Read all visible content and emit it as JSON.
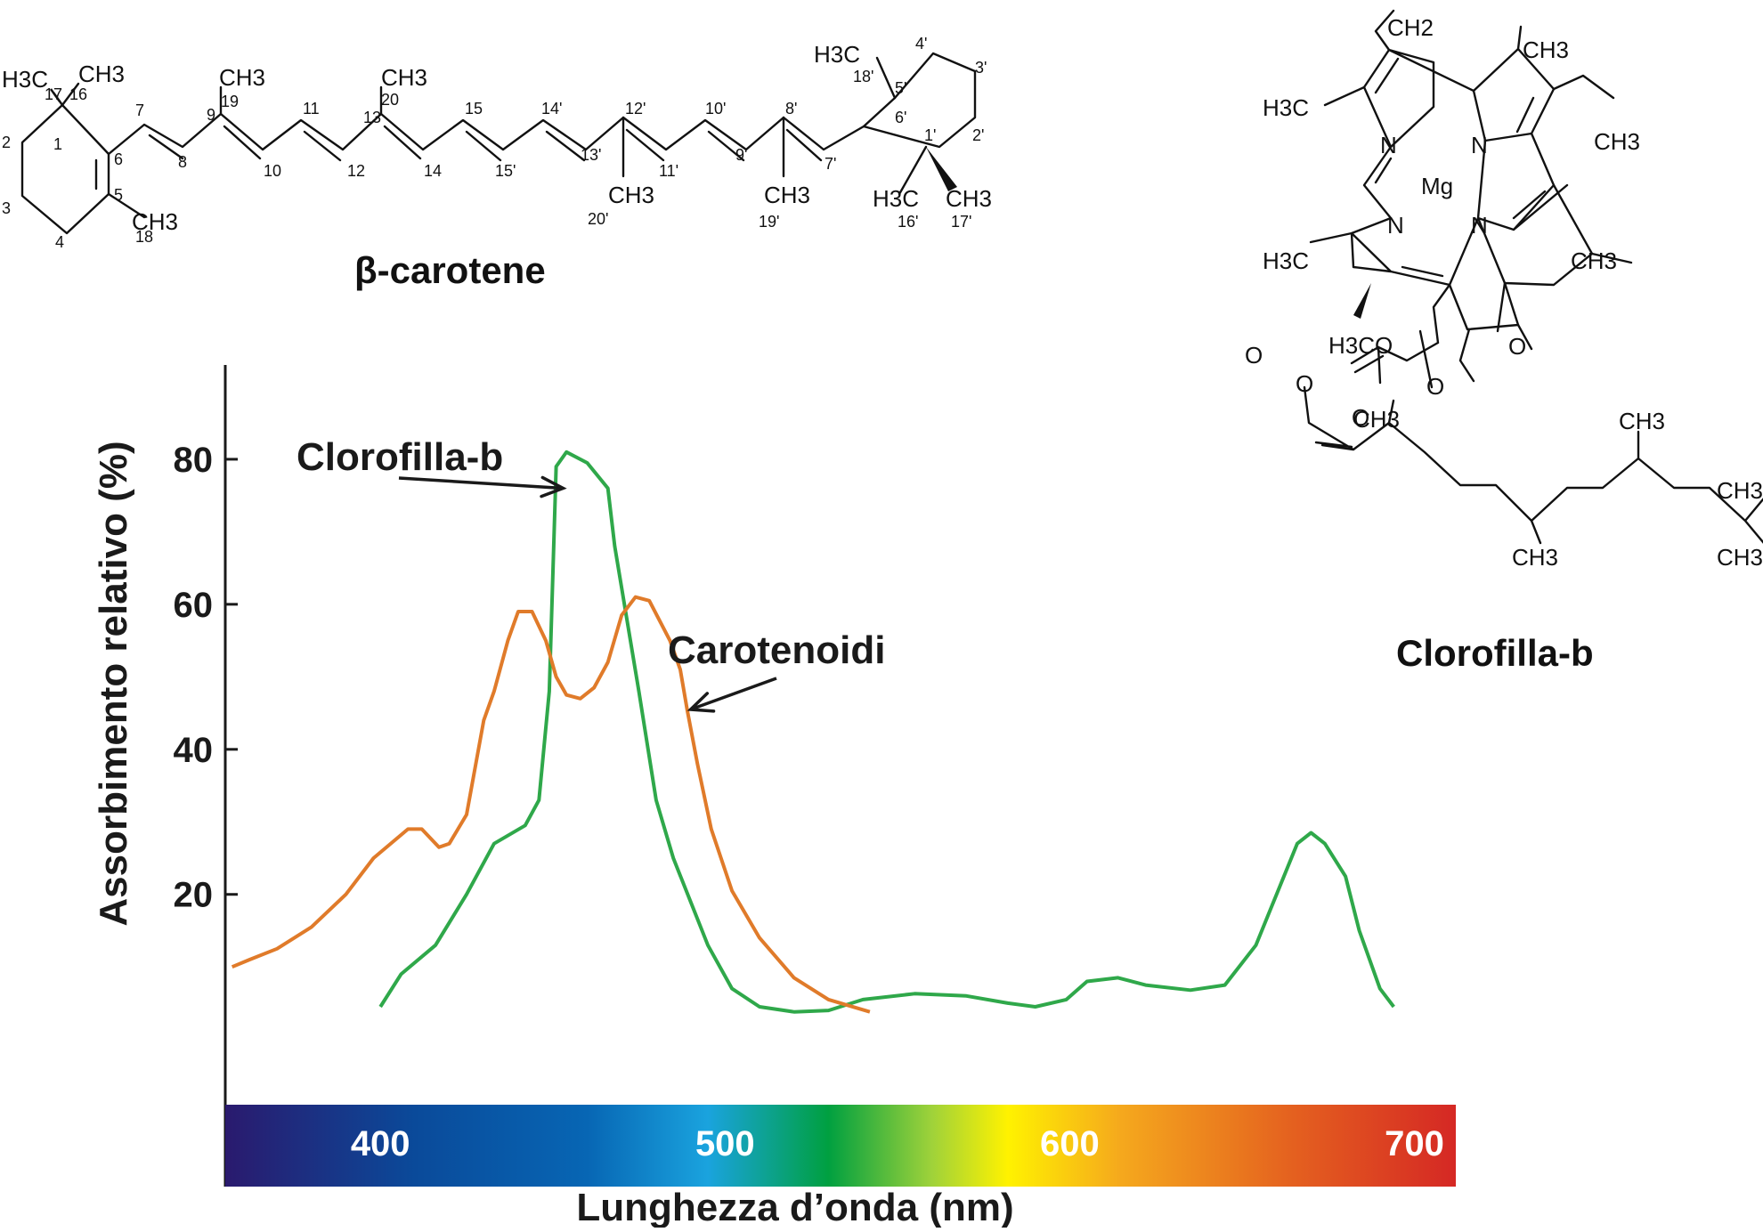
{
  "molecules": {
    "beta_carotene": {
      "name": "β-carotene",
      "atoms": {
        "h3c_left": "H3C",
        "ch3_16": "CH3",
        "ch3_18": "CH3",
        "ch3_19": "CH3",
        "ch3_20": "CH3",
        "ch3_20p": "CH3",
        "ch3_19p": "CH3",
        "h3c_18p": "H3C",
        "h3c_16p": "H3C",
        "ch3_17p": "CH3"
      },
      "numbers": [
        "17",
        "16",
        "1",
        "2",
        "3",
        "4",
        "5",
        "6",
        "18",
        "7",
        "8",
        "9",
        "19",
        "10",
        "11",
        "12",
        "13",
        "20",
        "14",
        "15",
        "15'",
        "14'",
        "13'",
        "20'",
        "12'",
        "11'",
        "10'",
        "9'",
        "19'",
        "8'",
        "7'",
        "6'",
        "5'",
        "4'",
        "3'",
        "2'",
        "1'",
        "16'",
        "17'",
        "18'"
      ]
    },
    "chlorophyll_b": {
      "name": "Clorofilla-b",
      "atoms": {
        "ch2": "CH2",
        "ch3_a": "CH3",
        "h3c_a": "H3C",
        "ch3_b": "CH3",
        "n1": "N",
        "n2": "N",
        "n3": "N",
        "n4": "N",
        "mg": "Mg",
        "h3c_b": "H3C",
        "ch3_c": "CH3",
        "h3co": "H3CO",
        "o1": "O",
        "o2": "O",
        "o3": "O",
        "o4": "O",
        "o5": "O",
        "ch3_d": "CH3",
        "ch3_e": "CH3",
        "ch3_f": "CH3",
        "ch3_g": "CH3",
        "ch3_h": "CH3"
      }
    }
  },
  "chart_data": {
    "type": "line",
    "title": "",
    "xlabel": "Lunghezza d’onda (nm)",
    "ylabel": "Assorbimento relativo (%)",
    "xlim": [
      355,
      712
    ],
    "ylim": [
      -9,
      93
    ],
    "x_ticks": [
      400,
      500,
      600,
      700
    ],
    "y_ticks": [
      20,
      40,
      60,
      80
    ],
    "colors": {
      "chlorophyll": "#2fa84a",
      "carotenoids": "#e07b2a"
    },
    "series": [
      {
        "name": "Clorofilla-b",
        "points": [
          [
            400,
            4.5
          ],
          [
            406,
            9
          ],
          [
            416,
            13
          ],
          [
            425,
            20
          ],
          [
            433,
            27
          ],
          [
            442,
            29.5
          ],
          [
            446,
            33
          ],
          [
            449,
            48
          ],
          [
            451,
            79
          ],
          [
            454,
            81
          ],
          [
            460,
            79.5
          ],
          [
            466,
            76
          ],
          [
            468,
            68
          ],
          [
            475,
            48
          ],
          [
            480,
            33
          ],
          [
            485,
            25
          ],
          [
            495,
            13
          ],
          [
            502,
            7
          ],
          [
            510,
            4.5
          ],
          [
            520,
            3.8
          ],
          [
            530,
            4
          ],
          [
            540,
            5.5
          ],
          [
            555,
            6.3
          ],
          [
            570,
            6
          ],
          [
            582,
            5
          ],
          [
            590,
            4.5
          ],
          [
            599,
            5.5
          ],
          [
            605,
            8
          ],
          [
            614,
            8.5
          ],
          [
            622,
            7.5
          ],
          [
            635,
            6.8
          ],
          [
            645,
            7.5
          ],
          [
            654,
            13
          ],
          [
            660,
            20
          ],
          [
            666,
            27
          ],
          [
            670,
            28.5
          ],
          [
            674,
            27
          ],
          [
            680,
            22.5
          ],
          [
            684,
            15
          ],
          [
            690,
            7
          ],
          [
            694,
            4.5
          ]
        ]
      },
      {
        "name": "Carotenoidi",
        "points": [
          [
            357,
            10
          ],
          [
            362,
            11
          ],
          [
            370,
            12.5
          ],
          [
            380,
            15.5
          ],
          [
            390,
            20
          ],
          [
            398,
            25
          ],
          [
            408,
            29
          ],
          [
            412,
            29
          ],
          [
            417,
            26.5
          ],
          [
            420,
            27
          ],
          [
            425,
            31
          ],
          [
            430,
            44
          ],
          [
            433,
            48
          ],
          [
            437,
            55
          ],
          [
            440,
            59
          ],
          [
            444,
            59
          ],
          [
            448,
            55
          ],
          [
            451,
            50
          ],
          [
            454,
            47.5
          ],
          [
            458,
            47
          ],
          [
            462,
            48.5
          ],
          [
            466,
            52
          ],
          [
            470,
            58.5
          ],
          [
            474,
            61
          ],
          [
            478,
            60.5
          ],
          [
            484,
            55
          ],
          [
            487,
            51
          ],
          [
            489,
            45.5
          ],
          [
            492,
            38
          ],
          [
            496,
            29
          ],
          [
            502,
            20.5
          ],
          [
            510,
            14
          ],
          [
            520,
            8.5
          ],
          [
            530,
            5.5
          ],
          [
            542,
            3.8
          ]
        ]
      }
    ],
    "annotations": [
      {
        "text": "Clorofilla-b",
        "target": [
          453,
          76
        ]
      },
      {
        "text": "Carotenoidi",
        "target": [
          490,
          45.5
        ]
      }
    ],
    "colorbar": {
      "range": [
        355,
        712
      ],
      "labels": [
        "400",
        "500",
        "600",
        "700"
      ],
      "stops": [
        {
          "nm": 355,
          "color": "#2a1a6e"
        },
        {
          "nm": 410,
          "color": "#0a4a9a"
        },
        {
          "nm": 460,
          "color": "#0766b4"
        },
        {
          "nm": 495,
          "color": "#1aa3de"
        },
        {
          "nm": 530,
          "color": "#00a040"
        },
        {
          "nm": 560,
          "color": "#9fd23a"
        },
        {
          "nm": 582,
          "color": "#fff200"
        },
        {
          "nm": 615,
          "color": "#f5a81d"
        },
        {
          "nm": 665,
          "color": "#e4601f"
        },
        {
          "nm": 712,
          "color": "#d52824"
        }
      ]
    }
  }
}
